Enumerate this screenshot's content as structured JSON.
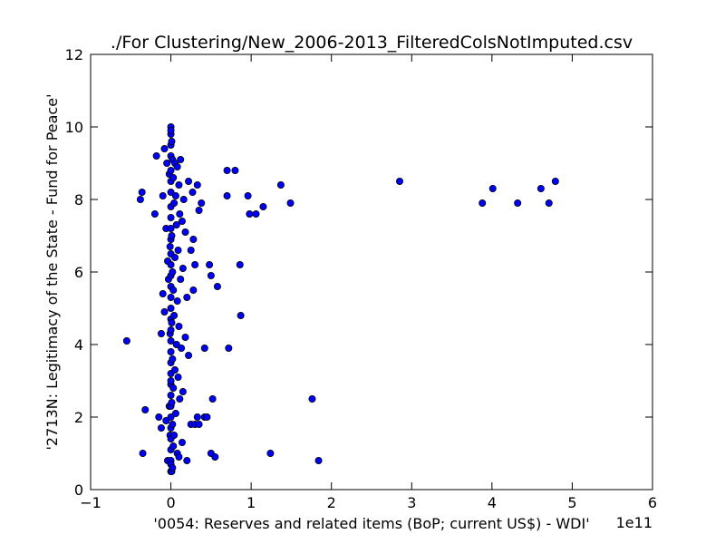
{
  "chart_data": {
    "type": "scatter",
    "title": "./For Clustering/New_2006-2013_FilteredColsNotImputed.csv",
    "xlabel": "'0054: Reserves and related items  (BoP; current US$) - WDI'",
    "ylabel": "'2713N: Legitimacy of the State - Fund for Peace'",
    "x_offset_label": "1e11",
    "xlim": [
      -1,
      6
    ],
    "ylim": [
      0,
      12
    ],
    "x_ticks": [
      "−1",
      "0",
      "1",
      "2",
      "3",
      "4",
      "5",
      "6"
    ],
    "y_ticks": [
      "0",
      "2",
      "4",
      "6",
      "8",
      "10",
      "12"
    ],
    "grid": false,
    "marker_color": "#0000ff",
    "x": [
      -0.55,
      -0.38,
      -0.35,
      -0.32,
      -0.36,
      -0.2,
      -0.18,
      -0.15,
      -0.12,
      -0.12,
      -0.1,
      -0.1,
      -0.08,
      -0.08,
      -0.06,
      -0.06,
      -0.05,
      -0.04,
      -0.04,
      -0.03,
      -0.02,
      -0.02,
      -0.01,
      -0.01,
      -0.01,
      0.0,
      0.0,
      0.0,
      0.0,
      0.0,
      0.0,
      0.0,
      0.0,
      0.0,
      0.0,
      0.0,
      0.0,
      0.0,
      0.0,
      0.0,
      0.0,
      0.0,
      0.0,
      0.0,
      0.0,
      0.0,
      0.0,
      0.0,
      0.0,
      0.0,
      0.0,
      0.0,
      0.0,
      0.0,
      0.0,
      0.0,
      0.0,
      0.0,
      0.0,
      0.0,
      0.01,
      0.01,
      0.01,
      0.01,
      0.01,
      0.02,
      0.02,
      0.02,
      0.02,
      0.02,
      0.03,
      0.03,
      0.03,
      0.03,
      0.04,
      0.04,
      0.04,
      0.05,
      0.05,
      0.05,
      0.06,
      0.06,
      0.07,
      0.07,
      0.08,
      0.08,
      0.08,
      0.09,
      0.09,
      0.1,
      0.1,
      0.1,
      0.11,
      0.11,
      0.12,
      0.12,
      0.13,
      0.14,
      0.14,
      0.15,
      0.15,
      0.16,
      0.18,
      0.18,
      0.2,
      0.2,
      0.22,
      0.22,
      0.25,
      0.25,
      0.27,
      0.28,
      0.28,
      0.3,
      0.3,
      0.33,
      0.33,
      0.35,
      0.35,
      0.38,
      0.42,
      0.42,
      0.45,
      0.48,
      0.5,
      0.5,
      0.52,
      0.55,
      0.58,
      0.7,
      0.7,
      0.72,
      0.8,
      0.86,
      0.87,
      0.96,
      0.98,
      1.06,
      1.15,
      1.24,
      1.37,
      1.49,
      1.76,
      1.84,
      2.85,
      3.88,
      4.01,
      4.32,
      4.61,
      4.71,
      4.79
    ],
    "y": [
      4.1,
      8.0,
      1.0,
      2.2,
      8.2,
      7.6,
      9.2,
      2.0,
      1.7,
      4.3,
      8.1,
      5.4,
      4.9,
      9.4,
      1.9,
      7.2,
      9.0,
      6.3,
      0.8,
      5.8,
      2.3,
      8.7,
      4.3,
      6.7,
      1.5,
      10.0,
      9.8,
      9.5,
      9.2,
      8.8,
      8.5,
      8.2,
      7.8,
      7.5,
      7.2,
      6.9,
      6.5,
      6.2,
      5.9,
      5.6,
      5.3,
      5.0,
      4.7,
      4.4,
      4.1,
      3.8,
      3.5,
      3.2,
      2.9,
      2.6,
      2.3,
      2.0,
      1.7,
      1.4,
      1.1,
      0.8,
      0.5,
      0.7,
      9.9,
      3.0,
      9.6,
      7.0,
      4.6,
      2.4,
      0.5,
      9.1,
      6.0,
      3.6,
      1.8,
      0.6,
      8.6,
      5.5,
      2.8,
      1.2,
      7.9,
      4.8,
      1.5,
      9.0,
      6.4,
      3.3,
      8.1,
      2.1,
      7.3,
      4.0,
      8.9,
      5.2,
      1.0,
      6.6,
      3.1,
      8.4,
      4.5,
      0.9,
      7.6,
      2.5,
      9.1,
      5.8,
      3.9,
      7.4,
      1.3,
      6.1,
      2.7,
      8.0,
      4.2,
      7.1,
      5.3,
      0.8,
      8.5,
      3.7,
      6.6,
      1.8,
      8.2,
      5.5,
      6.9,
      1.8,
      6.2,
      8.4,
      2.0,
      7.7,
      1.8,
      7.9,
      2.0,
      3.9,
      2.0,
      6.2,
      1.0,
      5.9,
      2.5,
      0.9,
      5.6,
      8.8,
      8.1,
      3.9,
      8.8,
      6.2,
      4.8,
      8.1,
      7.6,
      7.6,
      7.8,
      1.0,
      8.4,
      7.9,
      2.5,
      0.8,
      8.5,
      7.9,
      8.3,
      7.9,
      8.3,
      7.9,
      8.5
    ]
  }
}
